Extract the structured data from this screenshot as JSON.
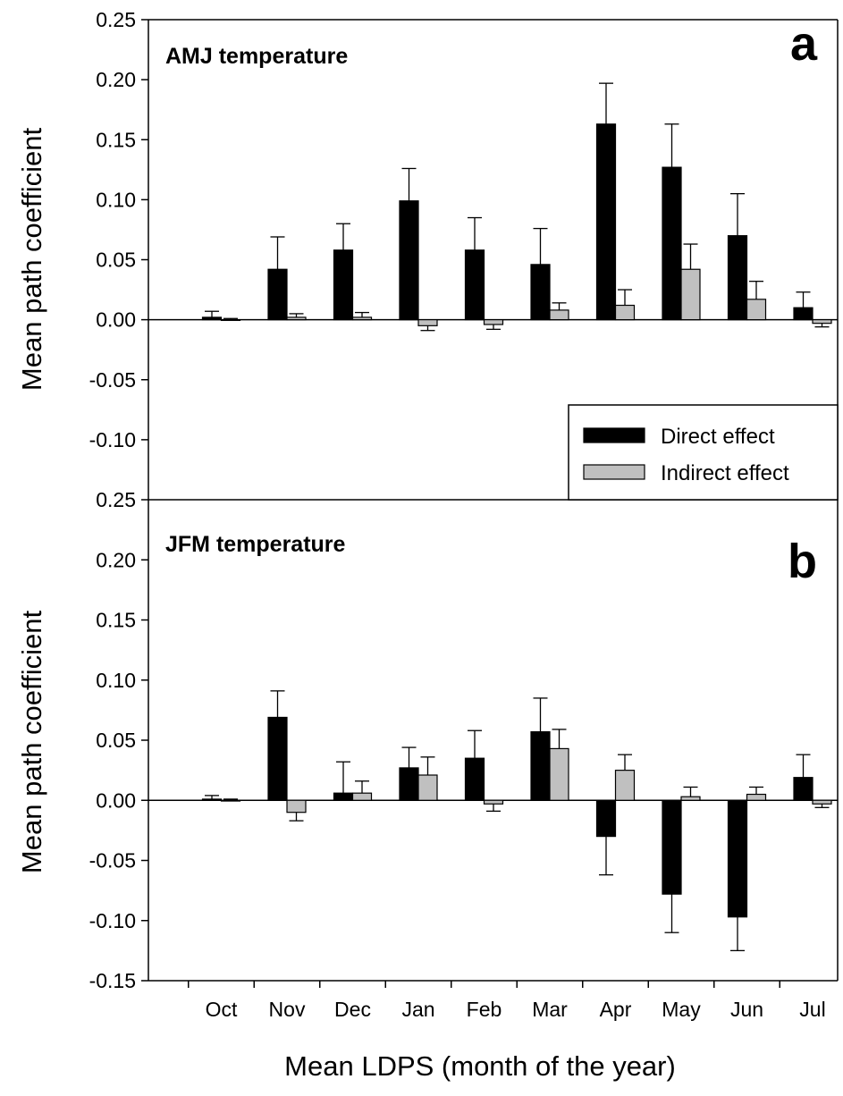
{
  "colors": {
    "direct": "#000000",
    "indirect": "#c0c0c0",
    "axis": "#000000"
  },
  "legend": {
    "placement": "bottom-right of panel a",
    "items": [
      "Direct effect",
      "Indirect effect"
    ]
  },
  "shared_xlabel": "Mean LDPS (month of the year)",
  "chart_data": [
    {
      "type": "bar",
      "panel": "a",
      "title": "AMJ temperature",
      "ylabel": "Mean path coefficient",
      "ylim": [
        -0.15,
        0.25
      ],
      "y_ticks": [
        "-0.10",
        "-0.05",
        "0.00",
        "0.05",
        "0.10",
        "0.15",
        "0.20",
        "0.25"
      ],
      "y_tick_values": [
        -0.1,
        -0.05,
        0.0,
        0.05,
        0.1,
        0.15,
        0.2,
        0.25
      ],
      "categories": [
        "Oct",
        "Nov",
        "Dec",
        "Jan",
        "Feb",
        "Mar",
        "Apr",
        "May",
        "Jun",
        "Jul"
      ],
      "series": [
        {
          "name": "Direct effect",
          "values": [
            0.002,
            0.042,
            0.058,
            0.099,
            0.058,
            0.046,
            0.163,
            0.127,
            0.07,
            0.01
          ],
          "errors": [
            0.005,
            0.027,
            0.022,
            0.027,
            0.027,
            0.03,
            0.034,
            0.036,
            0.035,
            0.013
          ]
        },
        {
          "name": "Indirect effect",
          "values": [
            0.0,
            0.002,
            0.002,
            -0.005,
            -0.004,
            0.008,
            0.012,
            0.042,
            0.017,
            -0.003
          ],
          "errors": [
            0.001,
            0.003,
            0.004,
            0.004,
            0.004,
            0.006,
            0.013,
            0.021,
            0.015,
            0.003
          ]
        }
      ]
    },
    {
      "type": "bar",
      "panel": "b",
      "title": "JFM temperature",
      "ylabel": "Mean path coefficient",
      "ylim": [
        -0.15,
        0.25
      ],
      "y_ticks": [
        "-0.15",
        "-0.10",
        "-0.05",
        "0.00",
        "0.05",
        "0.10",
        "0.15",
        "0.20",
        "0.25"
      ],
      "y_tick_values": [
        -0.15,
        -0.1,
        -0.05,
        0.0,
        0.05,
        0.1,
        0.15,
        0.2,
        0.25
      ],
      "categories": [
        "Oct",
        "Nov",
        "Dec",
        "Jan",
        "Feb",
        "Mar",
        "Apr",
        "May",
        "Jun",
        "Jul"
      ],
      "series": [
        {
          "name": "Direct effect",
          "values": [
            0.001,
            0.069,
            0.006,
            0.027,
            0.035,
            0.057,
            -0.03,
            -0.078,
            -0.097,
            0.019
          ],
          "errors": [
            0.003,
            0.022,
            0.026,
            0.017,
            0.023,
            0.028,
            0.032,
            0.032,
            0.028,
            0.019
          ]
        },
        {
          "name": "Indirect effect",
          "values": [
            0.0,
            -0.01,
            0.006,
            0.021,
            -0.003,
            0.043,
            0.025,
            0.003,
            0.005,
            -0.003
          ],
          "errors": [
            0.001,
            0.007,
            0.01,
            0.015,
            0.006,
            0.016,
            0.013,
            0.008,
            0.006,
            0.003
          ]
        }
      ]
    }
  ]
}
